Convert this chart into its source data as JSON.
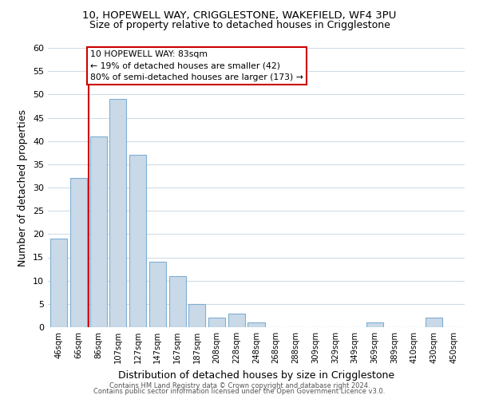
{
  "title1": "10, HOPEWELL WAY, CRIGGLESTONE, WAKEFIELD, WF4 3PU",
  "title2": "Size of property relative to detached houses in Crigglestone",
  "xlabel": "Distribution of detached houses by size in Crigglestone",
  "ylabel": "Number of detached properties",
  "bar_labels": [
    "46sqm",
    "66sqm",
    "86sqm",
    "107sqm",
    "127sqm",
    "147sqm",
    "167sqm",
    "187sqm",
    "208sqm",
    "228sqm",
    "248sqm",
    "268sqm",
    "288sqm",
    "309sqm",
    "329sqm",
    "349sqm",
    "369sqm",
    "389sqm",
    "410sqm",
    "430sqm",
    "450sqm"
  ],
  "bar_values": [
    19,
    32,
    41,
    49,
    37,
    14,
    11,
    5,
    2,
    3,
    1,
    0,
    0,
    0,
    0,
    0,
    1,
    0,
    0,
    2,
    0
  ],
  "bar_color": "#c9d9e8",
  "bar_edge_color": "#7fafd4",
  "ylim": [
    0,
    60
  ],
  "yticks": [
    0,
    5,
    10,
    15,
    20,
    25,
    30,
    35,
    40,
    45,
    50,
    55,
    60
  ],
  "vline_x": 1.5,
  "vline_color": "#cc0000",
  "annotation_title": "10 HOPEWELL WAY: 83sqm",
  "annotation_line1": "← 19% of detached houses are smaller (42)",
  "annotation_line2": "80% of semi-detached houses are larger (173) →",
  "annotation_box_color": "#ffffff",
  "annotation_box_edge": "#cc0000",
  "footer1": "Contains HM Land Registry data © Crown copyright and database right 2024.",
  "footer2": "Contains public sector information licensed under the Open Government Licence v3.0.",
  "background_color": "#ffffff",
  "grid_color": "#d0dce8"
}
